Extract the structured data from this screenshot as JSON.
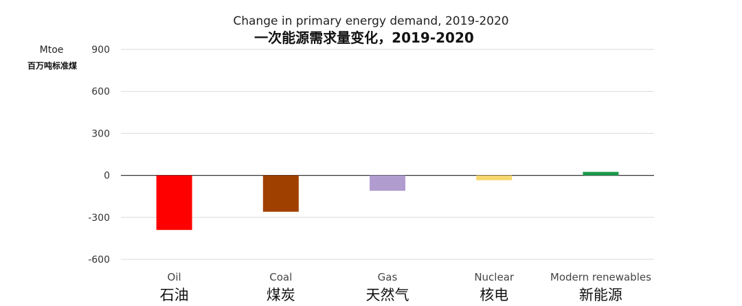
{
  "chart_data": {
    "type": "bar",
    "title": "Change in primary energy demand, 2019-2020",
    "subtitle": "一次能源需求量变化，2019-2020",
    "ylabel": "Mtoe",
    "ylabel_zh": "百万吨标准煤",
    "ylim": [
      -600,
      900
    ],
    "yticks": [
      -600,
      -300,
      0,
      300,
      600,
      900
    ],
    "ytick_labels": [
      "-600",
      "-300",
      "0",
      "300",
      "600",
      "900"
    ],
    "grid": true,
    "categories": [
      "Oil",
      "Coal",
      "Gas",
      "Nuclear",
      "Modern renewables"
    ],
    "categories_zh": [
      "石油",
      "煤炭",
      "天然气",
      "核电",
      "新能源"
    ],
    "values": [
      -390,
      -260,
      -110,
      -35,
      25
    ],
    "colors": [
      "#ff0000",
      "#a04000",
      "#b19cd0",
      "#f5d76e",
      "#1a9a4a"
    ]
  }
}
